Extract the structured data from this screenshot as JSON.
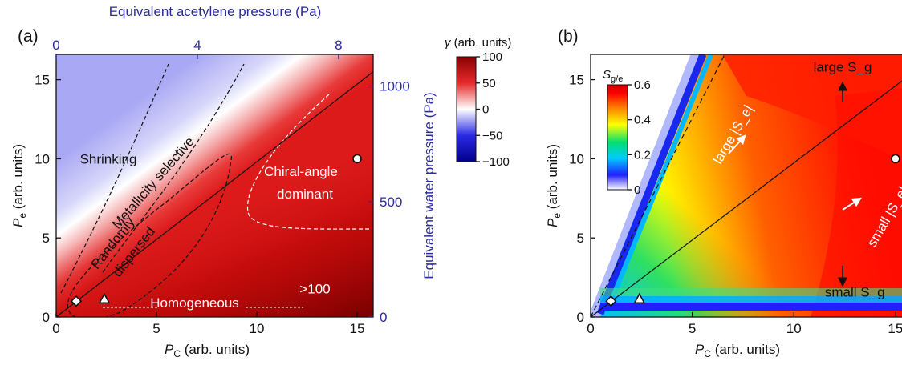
{
  "chart_data": [
    {
      "panel": "(a)",
      "type": "heatmap",
      "xlabel": "P_C (arb. units)",
      "ylabel": "P_e (arb. units)",
      "x2label": "Equivalent acetylene pressure (Pa)",
      "y2label": "Equivalent water pressure (Pa)",
      "xlim": [
        0,
        15.8
      ],
      "ylim": [
        0,
        16.6
      ],
      "xticks": [
        0,
        5,
        10,
        15
      ],
      "yticks": [
        0,
        5,
        10,
        15
      ],
      "x2ticks": [
        0,
        4,
        8
      ],
      "x2_per_x": 0.5684,
      "y2ticks": [
        0,
        500,
        1000
      ],
      "y2_per_y": 68.5,
      "colorbar": {
        "label": "γ (arb. units)",
        "range": [
          -100,
          100
        ],
        "ticks": [
          100,
          50,
          0,
          -50,
          -100
        ],
        "tick_labels": [
          "100",
          "50",
          "0",
          "−50",
          "−100"
        ],
        "colors": [
          "#00008a",
          "#2a2ae6",
          "#ffffff",
          "#e62a2a",
          "#8a0000"
        ]
      },
      "regions": [
        {
          "label": "Shrinking",
          "x": 2.6,
          "y": 9.7
        },
        {
          "label": "Metallicity selective",
          "x": 5.0,
          "y": 8.3,
          "angle": -49
        },
        {
          "label": "Randomly",
          "x": 3.0,
          "y": 4.5,
          "angle": -52
        },
        {
          "label": "dispersed",
          "x": 4.05,
          "y": 3.95,
          "angle": -52
        },
        {
          "label": "Chiral-angle",
          "x": 12.2,
          "y": 8.9
        },
        {
          "label": "dominant",
          "x": 12.4,
          "y": 7.5
        },
        {
          "label": ">100",
          "x": 12.9,
          "y": 1.5
        },
        {
          "label": "Homogeneous",
          "x": 6.9,
          "y": 0.6
        }
      ],
      "diagonal_line": [
        [
          0,
          0
        ],
        [
          15.8,
          15.5
        ]
      ],
      "markers": [
        {
          "shape": "diamond",
          "x": 1,
          "y": 1
        },
        {
          "shape": "triangle",
          "x": 2.4,
          "y": 1.1
        },
        {
          "shape": "circle",
          "x": 15,
          "y": 10
        }
      ]
    },
    {
      "panel": "(b)",
      "type": "heatmap",
      "xlabel": "P_C (arb. units)",
      "ylabel": "P_e (arb. units)",
      "xlim": [
        0,
        15.4
      ],
      "ylim": [
        0,
        16.6
      ],
      "xticks": [
        0,
        5,
        10,
        15
      ],
      "xtick_labels": [
        "0",
        "5",
        "10",
        "15"
      ],
      "yticks": [
        0,
        5,
        10,
        15
      ],
      "colorbar": {
        "label": "S_g/e",
        "range": [
          0,
          0.6
        ],
        "ticks": [
          0.6,
          0.4,
          0.2,
          0
        ],
        "tick_labels": [
          "0.6",
          "0.4",
          "0.2",
          "0"
        ],
        "colors": [
          "#ffffff",
          "#2020ff",
          "#00ccff",
          "#00e070",
          "#ffff00",
          "#ff8000",
          "#ff0000",
          "#cc0000"
        ]
      },
      "annotations": [
        {
          "label": "large S_g",
          "x": 12.4,
          "y": 15.5
        },
        {
          "label": "large |S_e|",
          "x": 7.2,
          "y": 11.4,
          "angle": -60
        },
        {
          "label": "small |S_e|",
          "x": 14.8,
          "y": 6.2,
          "angle": -60
        },
        {
          "label": "small S_g",
          "x": 13.0,
          "y": 1.3
        }
      ],
      "dashed_line": [
        [
          0,
          0
        ],
        [
          6.6,
          16.6
        ]
      ],
      "diagonal_line": [
        [
          0,
          0
        ],
        [
          15.4,
          15.0
        ]
      ],
      "markers": [
        {
          "shape": "diamond",
          "x": 1,
          "y": 1
        },
        {
          "shape": "triangle",
          "x": 2.4,
          "y": 1.1
        },
        {
          "shape": "circle",
          "x": 15,
          "y": 10
        }
      ]
    }
  ]
}
